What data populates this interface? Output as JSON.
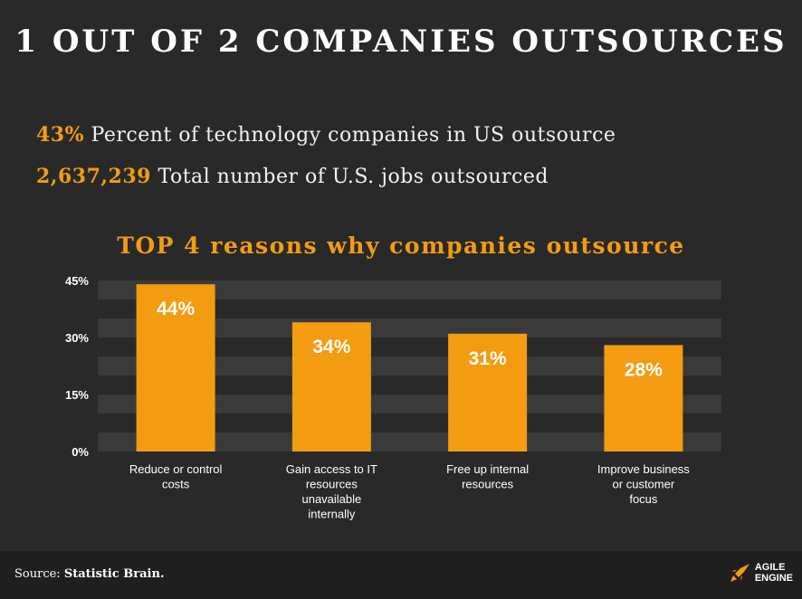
{
  "title": "1 OUT OF 2 COMPANIES OUTSOURCES",
  "stats": [
    {
      "value": "43%",
      "text": "Percent of technology companies in US outsource"
    },
    {
      "value": "2,637,239",
      "text": "Total number of U.S. jobs outsourced"
    }
  ],
  "colors": {
    "accent": "#f39c12",
    "bar": "#f39c12",
    "band": "#3a3a3a",
    "background": "#292929"
  },
  "chart_data": {
    "type": "bar",
    "title": "TOP 4 reasons why companies outsource",
    "categories": [
      [
        "Reduce or control",
        "costs"
      ],
      [
        "Gain access to IT",
        "resources",
        "unavailable",
        "internally"
      ],
      [
        "Free up internal",
        "resources"
      ],
      [
        "Improve business",
        "or customer",
        "focus"
      ]
    ],
    "values": [
      44,
      34,
      31,
      28
    ],
    "data_labels": [
      "44%",
      "34%",
      "31%",
      "28%"
    ],
    "yticks": [
      "0%",
      "15%",
      "30%",
      "45%"
    ],
    "ylim": [
      0,
      45
    ],
    "grid": "banded"
  },
  "footer": {
    "source_prefix": "Source:",
    "source_name": "Statistic Brain.",
    "logo_top": "AGILE",
    "logo_bottom": "ENGINE",
    "logo_icon": "rocket-icon"
  }
}
